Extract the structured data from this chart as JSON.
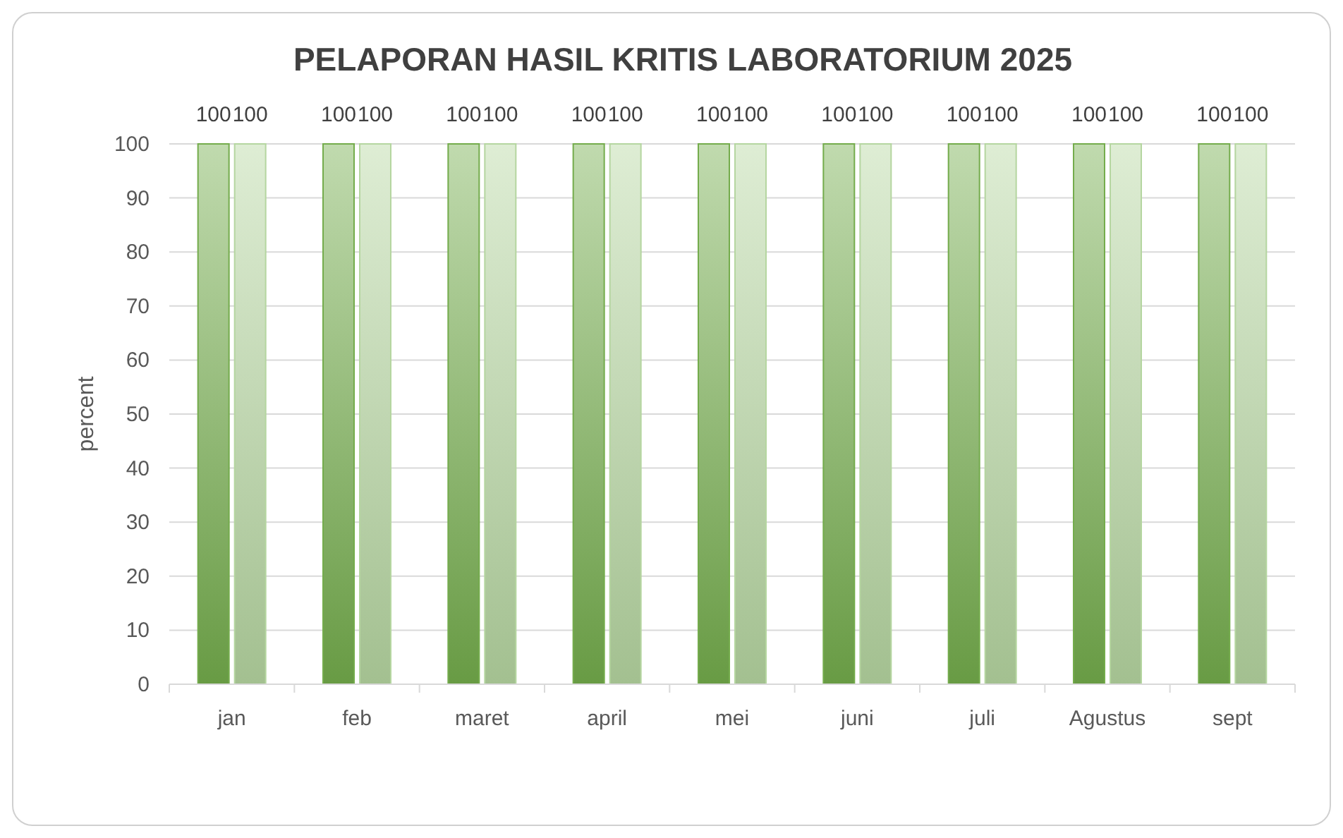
{
  "chart_data": {
    "type": "bar",
    "title": "PELAPORAN HASIL KRITIS LABORATORIUM 2025",
    "ylabel": "percent",
    "categories": [
      "jan",
      "feb",
      "maret",
      "april",
      "mei",
      "juni",
      "juli",
      "Agustus",
      "sept"
    ],
    "series": [
      {
        "color": "#74ac4c",
        "values": [
          100,
          100,
          100,
          100,
          100,
          100,
          100,
          100,
          100
        ]
      },
      {
        "color": "#b5d6a0",
        "values": [
          100,
          100,
          100,
          100,
          100,
          100,
          100,
          100,
          100
        ]
      }
    ],
    "ylim": [
      0,
      100
    ],
    "yticks": [
      0,
      10,
      20,
      30,
      40,
      50,
      60,
      70,
      80,
      90,
      100
    ],
    "grid": "y",
    "data_labels": true
  }
}
